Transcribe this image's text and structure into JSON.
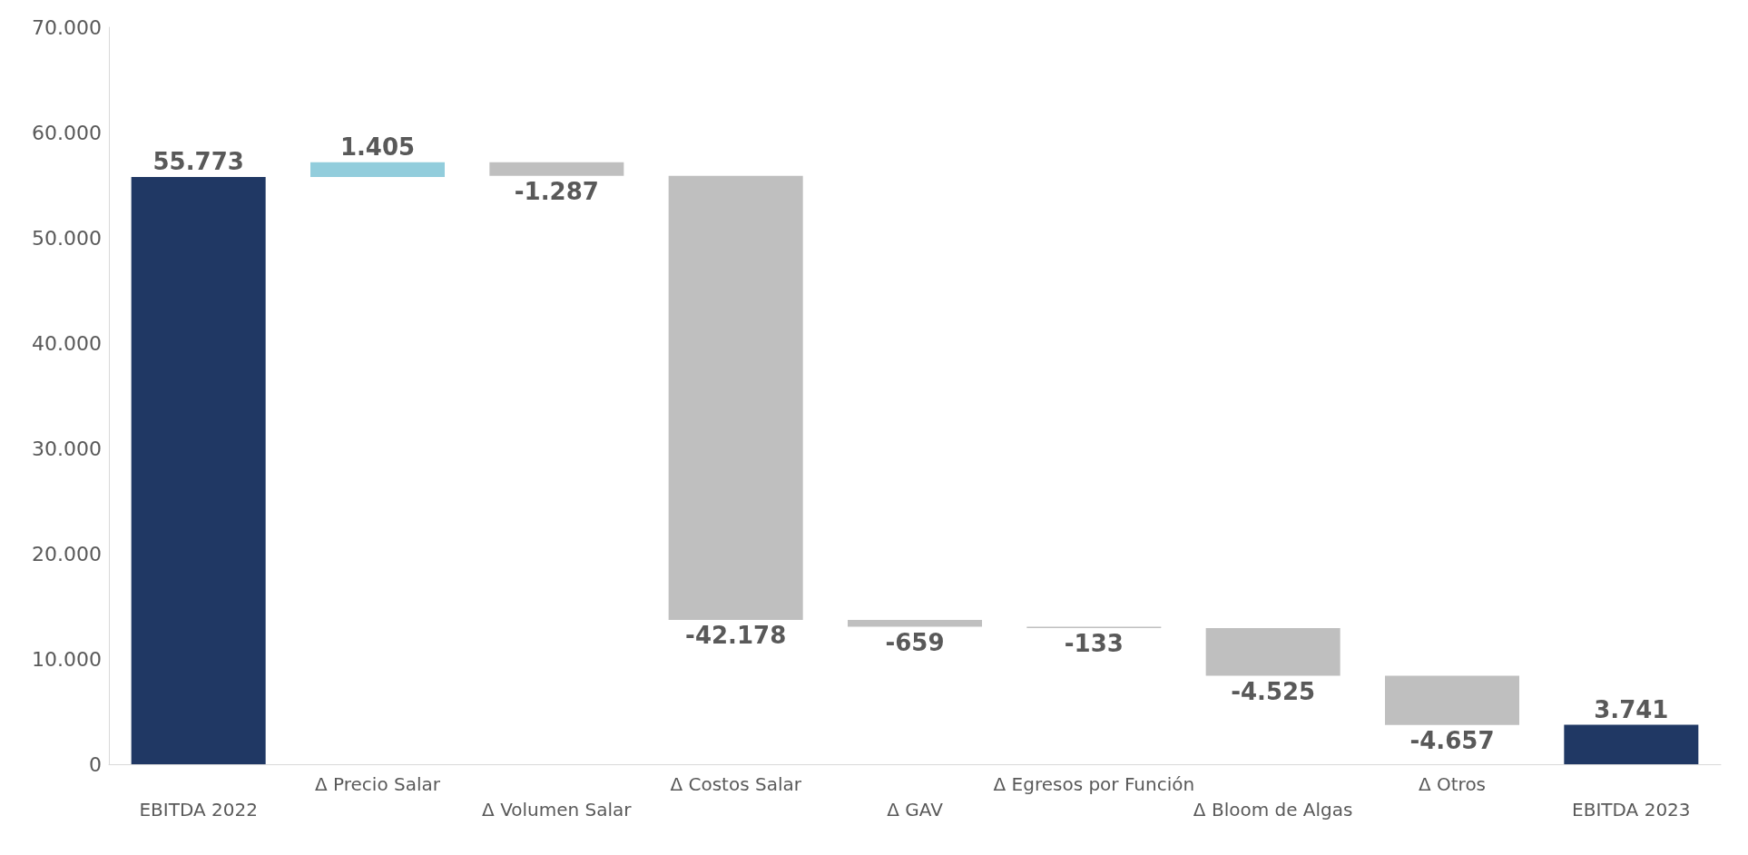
{
  "chart_data": {
    "type": "bar",
    "categories": [
      "EBITDA 2022",
      "Δ Precio Salar",
      "Δ Volumen Salar",
      "Δ Costos Salar",
      "Δ GAV",
      "Δ Egresos por Función",
      "Δ Bloom de Algas",
      "Δ Otros",
      "EBITDA 2023"
    ],
    "values": [
      55773,
      1405,
      -1287,
      -42178,
      -659,
      -133,
      -4525,
      -4657,
      3741
    ],
    "base": [
      0,
      55773,
      57178,
      55891,
      13713,
      13054,
      12921,
      8396,
      0
    ],
    "value_labels": [
      "55.773",
      "1.405",
      "-1.287",
      "-42.178",
      "-659",
      "-133",
      "-4.525",
      "-4.657",
      "3.741"
    ],
    "colors": [
      "#203864",
      "#92cddc",
      "#bfbfbf",
      "#bfbfbf",
      "#bfbfbf",
      "#bfbfbf",
      "#bfbfbf",
      "#bfbfbf",
      "#203864"
    ],
    "ylim": [
      0,
      70000
    ],
    "yticks": [
      {
        "value": 0,
        "label": "0"
      },
      {
        "value": 10000,
        "label": "10.000"
      },
      {
        "value": 20000,
        "label": "20.000"
      },
      {
        "value": 30000,
        "label": "30.000"
      },
      {
        "value": 40000,
        "label": "40.000"
      },
      {
        "value": 50000,
        "label": "50.000"
      },
      {
        "value": 60000,
        "label": "60.000"
      },
      {
        "value": 70000,
        "label": "70.000"
      }
    ]
  }
}
